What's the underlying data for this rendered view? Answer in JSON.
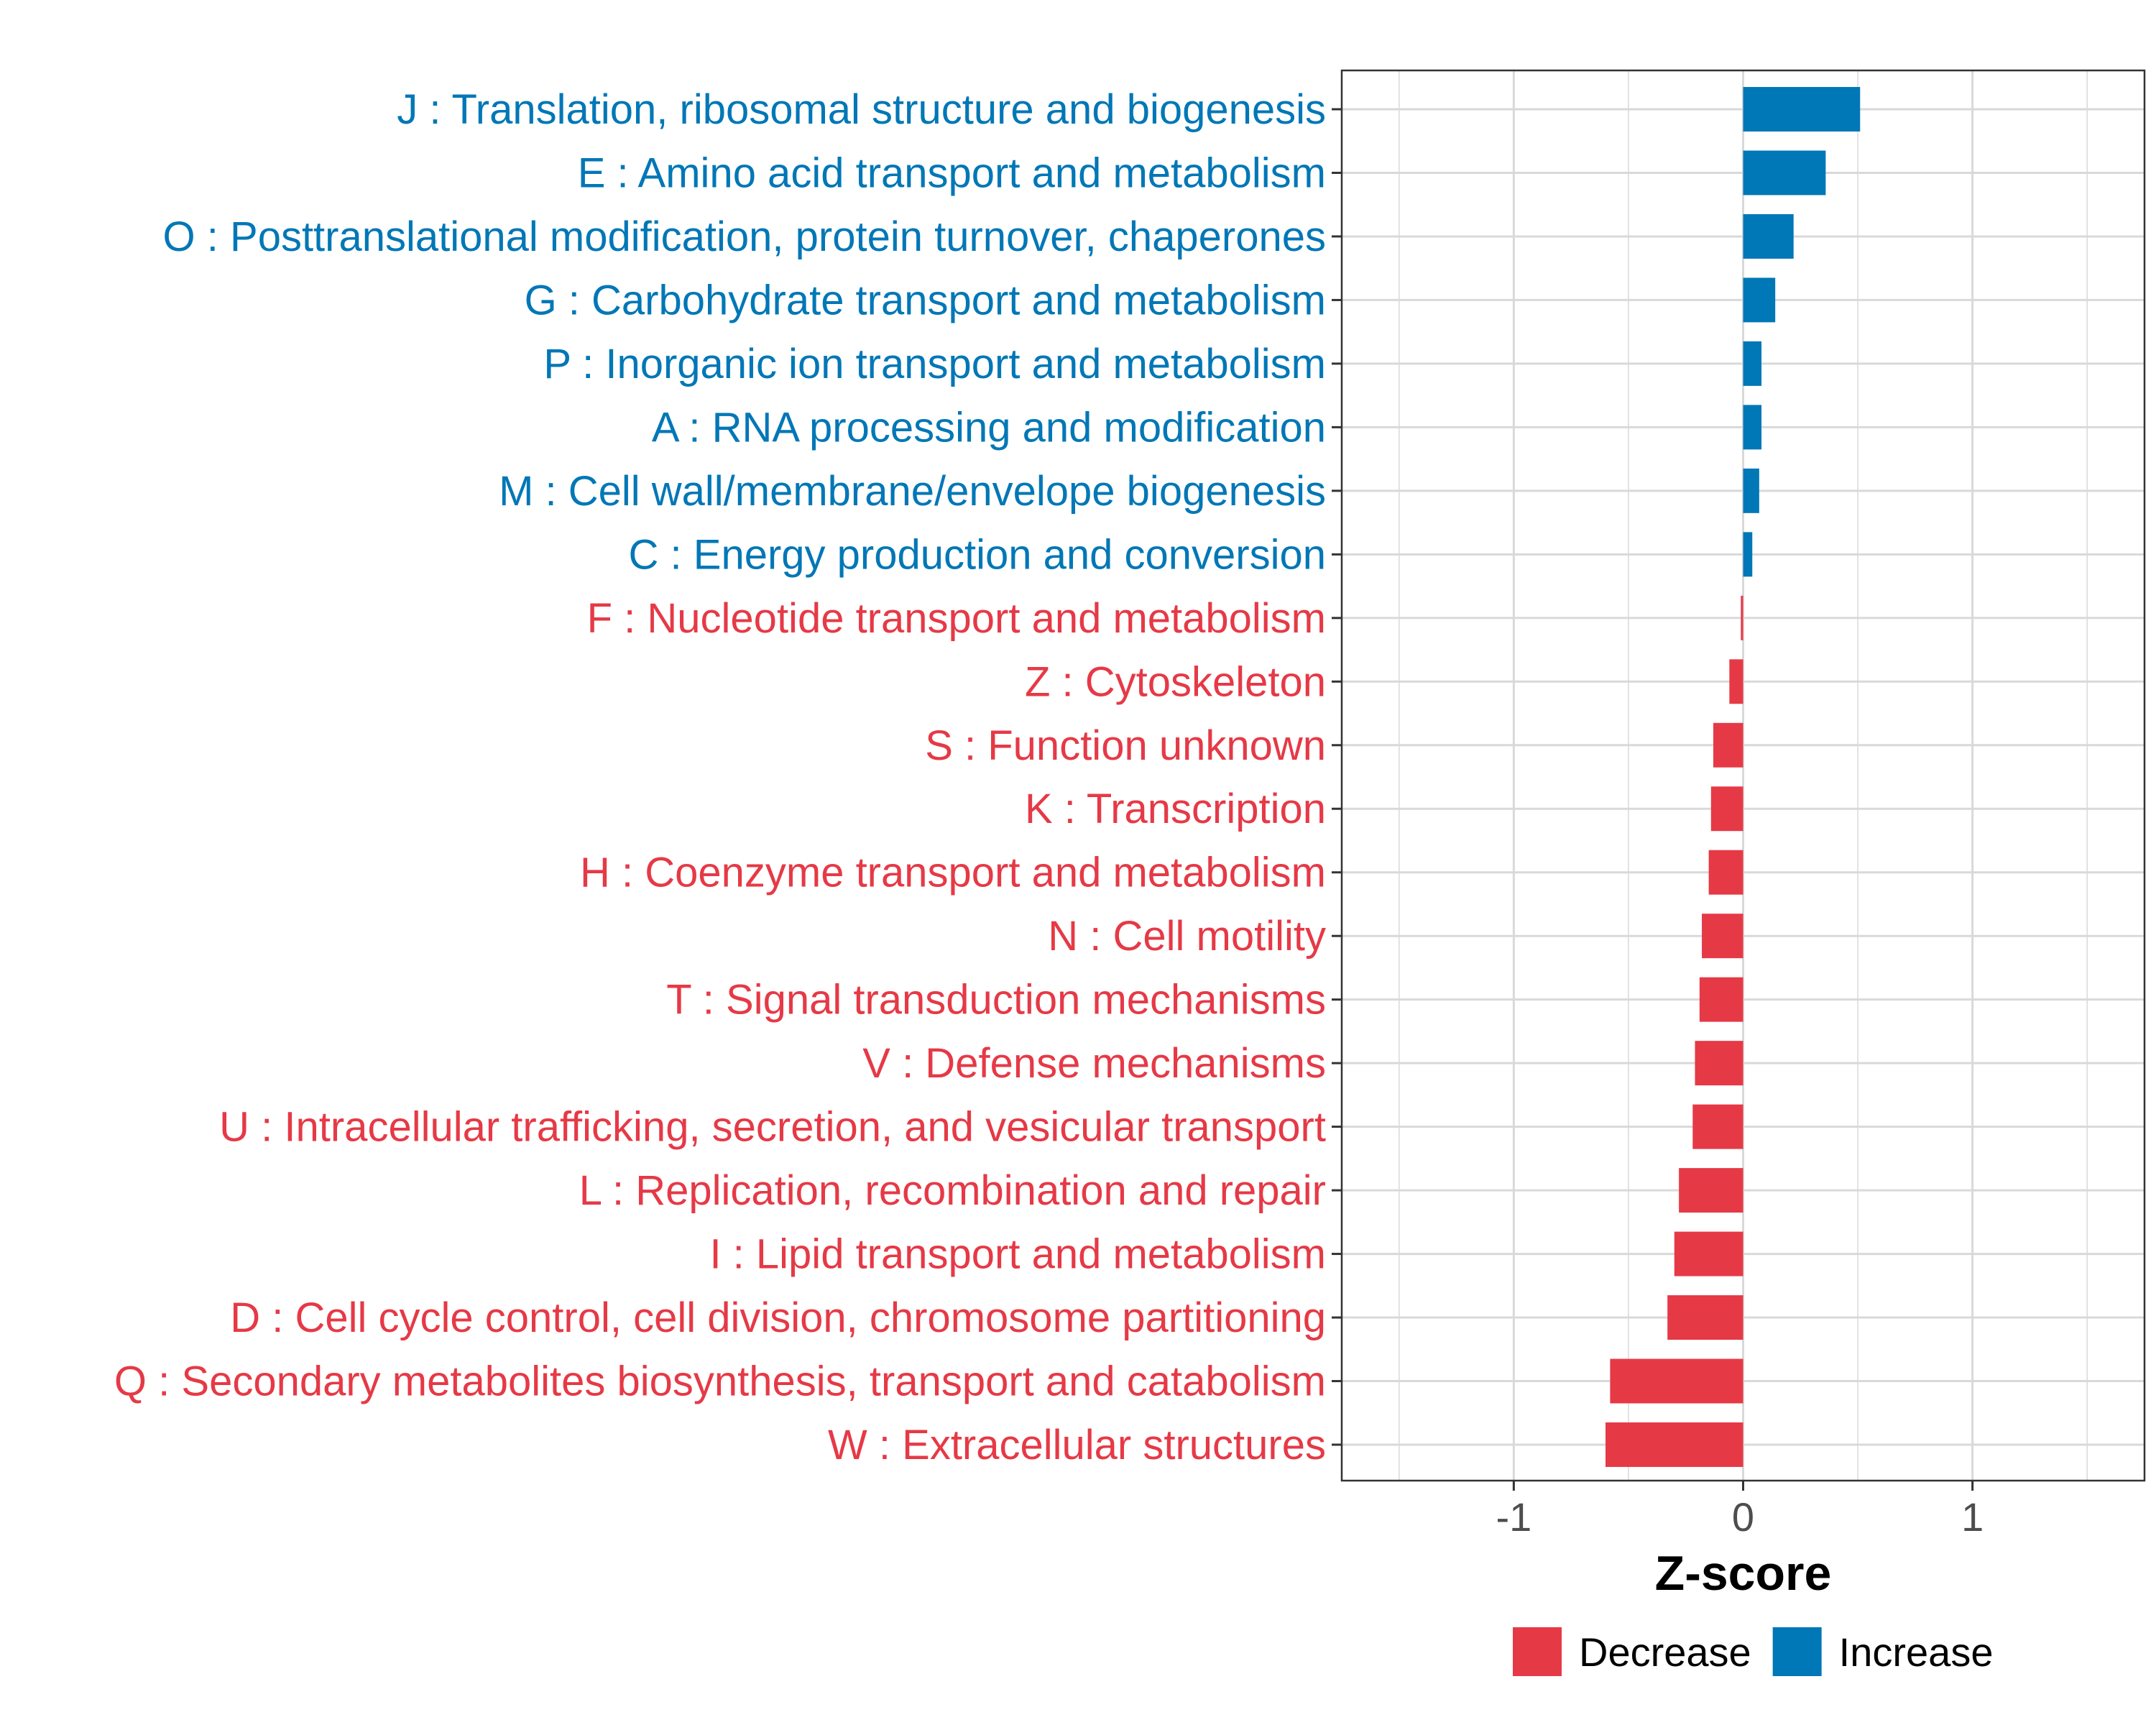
{
  "chart_data": {
    "type": "bar",
    "orientation": "horizontal",
    "title": "",
    "xlabel": "Z-score",
    "ylabel": "",
    "xlim": [
      -1.75,
      1.75
    ],
    "xticks": [
      -1,
      0,
      1
    ],
    "xtick_labels": [
      "-1",
      "0",
      "1"
    ],
    "grid": true,
    "legend_position": "bottom",
    "categories": [
      "J : Translation, ribosomal structure and biogenesis",
      "E : Amino acid transport and metabolism",
      "O : Posttranslational modification, protein turnover, chaperones",
      "G : Carbohydrate transport and metabolism",
      "P : Inorganic ion transport and metabolism",
      "A : RNA processing and modification",
      "M : Cell wall/membrane/envelope biogenesis",
      "C : Energy production and conversion",
      "F : Nucleotide transport and metabolism",
      "Z : Cytoskeleton",
      "S : Function unknown",
      "K : Transcription",
      "H : Coenzyme transport and metabolism",
      "N : Cell motility",
      "T : Signal transduction mechanisms",
      "V : Defense mechanisms",
      "U : Intracellular trafficking, secretion, and vesicular transport",
      "L : Replication, recombination and repair",
      "I : Lipid transport and metabolism",
      "D : Cell cycle control, cell division, chromosome partitioning",
      "Q : Secondary metabolites biosynthesis, transport and catabolism",
      "W : Extracellular structures"
    ],
    "values": [
      0.51,
      0.36,
      0.22,
      0.14,
      0.08,
      0.08,
      0.07,
      0.04,
      -0.01,
      -0.06,
      -0.13,
      -0.14,
      -0.15,
      -0.18,
      -0.19,
      -0.21,
      -0.22,
      -0.28,
      -0.3,
      -0.33,
      -0.58,
      -0.6
    ],
    "groups": [
      "Increase",
      "Increase",
      "Increase",
      "Increase",
      "Increase",
      "Increase",
      "Increase",
      "Increase",
      "Decrease",
      "Decrease",
      "Decrease",
      "Decrease",
      "Decrease",
      "Decrease",
      "Decrease",
      "Decrease",
      "Decrease",
      "Decrease",
      "Decrease",
      "Decrease",
      "Decrease",
      "Decrease"
    ],
    "legend": [
      {
        "name": "Decrease",
        "color": "#E63946"
      },
      {
        "name": "Increase",
        "color": "#0077B6"
      }
    ],
    "colors": {
      "Decrease": "#E63946",
      "Increase": "#0077B6"
    }
  }
}
